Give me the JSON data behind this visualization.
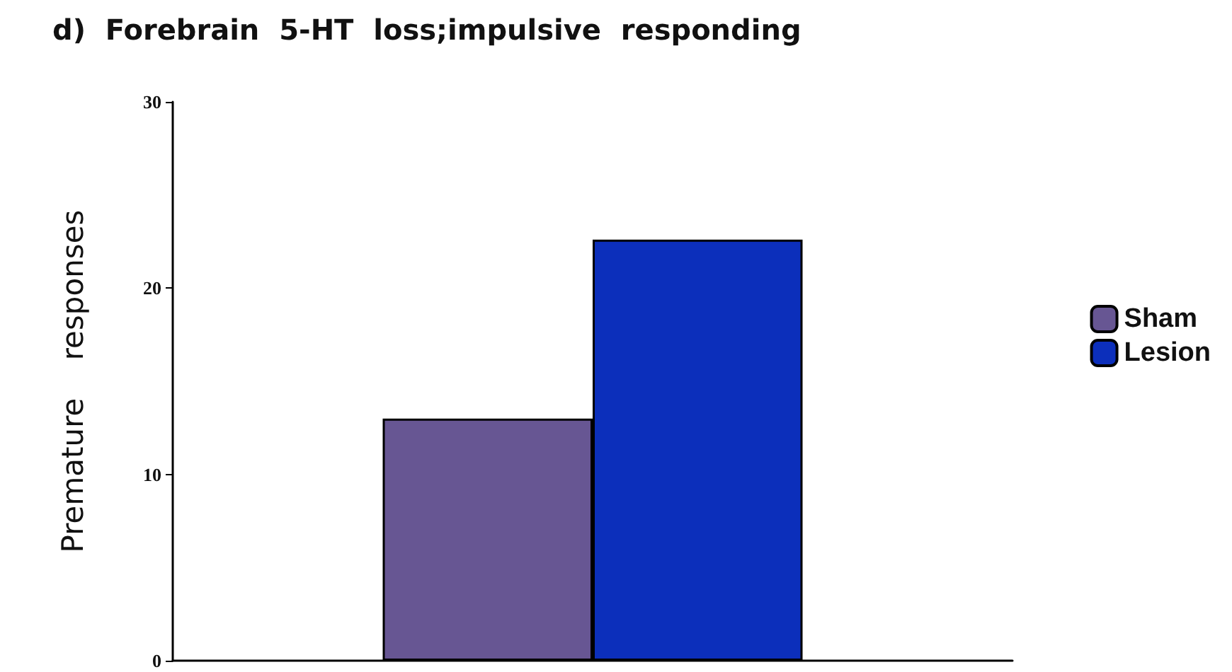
{
  "chart_data": {
    "type": "bar",
    "title": "d)  Forebrain  5-HT  loss;impulsive  responding",
    "ylabel": "Premature    responses",
    "categories": [
      null
    ],
    "series": [
      {
        "name": "Sham",
        "color": "#675693",
        "values": [
          13.0
        ]
      },
      {
        "name": "Lesion",
        "color": "#0c2fbb",
        "values": [
          22.6
        ]
      }
    ],
    "ylim": [
      0,
      30
    ],
    "yticks": [
      0,
      10,
      20,
      30
    ],
    "grid": false,
    "legend": "right"
  }
}
